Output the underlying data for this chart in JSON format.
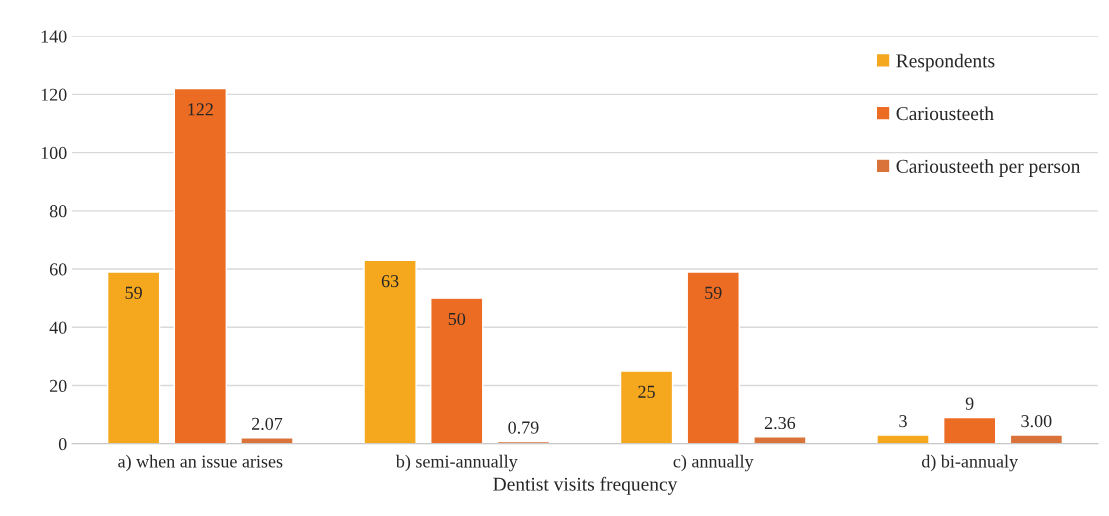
{
  "chart_data": {
    "type": "bar",
    "xlabel": "Dentist visits frequency",
    "categories": [
      "a) when an issue arises",
      "b) semi-annually",
      "c) annually",
      "d) bi-annualy"
    ],
    "series": [
      {
        "name": "Respondents",
        "color": "#f5a81e",
        "values": [
          59,
          63,
          25,
          3
        ],
        "value_labels": [
          "59",
          "63",
          "25",
          "3"
        ]
      },
      {
        "name": "Cariousteeth",
        "color": "#ec6c24",
        "values": [
          122,
          50,
          59,
          9
        ],
        "value_labels": [
          "122",
          "50",
          "59",
          "9"
        ]
      },
      {
        "name": "Cariousteeth per person",
        "color": "#d9733a",
        "values": [
          2.07,
          0.79,
          2.36,
          3.0
        ],
        "value_labels": [
          "2.07",
          "0.79",
          "2.36",
          "3.00"
        ]
      }
    ],
    "ylim": [
      0,
      140
    ],
    "yticks": [
      0,
      20,
      40,
      60,
      80,
      100,
      120,
      140
    ],
    "grid": "y",
    "legend": "top right"
  }
}
